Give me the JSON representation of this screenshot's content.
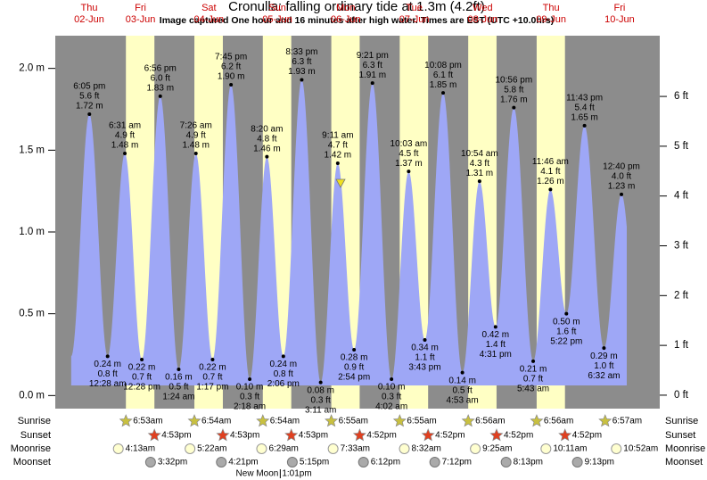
{
  "chart_data": {
    "type": "area",
    "title": "Cronulla: falling  ordinary tide at 1.3m (4.2ft)",
    "subtitle": "Image captured One hour and 16 minutes after high water. Times are EST (UTC +10.0hrs)",
    "ylim": [
      -0.08,
      2.2
    ],
    "yticks": [
      {
        "value": 0,
        "label": "0.0 m"
      },
      {
        "value": 0.5,
        "label": "0.5 m"
      },
      {
        "value": 1,
        "label": "1.0 m"
      },
      {
        "value": 1.5,
        "label": "1.5 m"
      },
      {
        "value": 2,
        "label": "2.0 m"
      }
    ],
    "y2lim": [
      -0.27,
      7.22
    ],
    "y2ticks": [
      {
        "value": 0,
        "label": "0 ft"
      },
      {
        "value": 1,
        "label": "1 ft"
      },
      {
        "value": 2,
        "label": "2 ft"
      },
      {
        "value": 3,
        "label": "3 ft"
      },
      {
        "value": 4,
        "label": "4 ft"
      },
      {
        "value": 5,
        "label": "5 ft"
      },
      {
        "value": 6,
        "label": "6 ft"
      }
    ],
    "row_labels": [
      "Sunrise",
      "Sunset",
      "Moonrise",
      "Moonset"
    ],
    "current_height": 1.3,
    "colors": {
      "water": "#9ea7f6",
      "day": "#ffffc4",
      "night": "#8c8c8c",
      "weekday": "#cc0000"
    },
    "days": [
      {
        "weekday": "Thu",
        "date": "02-Jun",
        "tides": [
          {
            "time": "6:05 pm",
            "height": 1.72,
            "height_label": "1.72 m",
            "feet": "5.6 ft"
          }
        ]
      },
      {
        "weekday": "Fri",
        "date": "03-Jun",
        "sunrise": "6:53am",
        "sunset": "4:53pm",
        "moonrise": "4:13am",
        "moonset": "3:32pm",
        "tides": [
          {
            "time": "12:28 am",
            "height": 0.24,
            "height_label": "0.24 m",
            "feet": "0.8 ft"
          },
          {
            "time": "6:31 am",
            "height": 1.48,
            "height_label": "1.48 m",
            "feet": "4.9 ft"
          },
          {
            "time": "12:28 pm",
            "height": 0.22,
            "height_label": "0.22 m",
            "feet": "0.7 ft"
          },
          {
            "time": "6:56 pm",
            "height": 1.83,
            "height_label": "1.83 m",
            "feet": "6.0 ft"
          }
        ]
      },
      {
        "weekday": "Sat",
        "date": "04-Jun",
        "sunrise": "6:54am",
        "sunset": "4:53pm",
        "moonrise": "5:22am",
        "moonset": "4:21pm",
        "tides": [
          {
            "time": "1:24 am",
            "height": 0.16,
            "height_label": "0.16 m",
            "feet": "0.5 ft"
          },
          {
            "time": "7:26 am",
            "height": 1.48,
            "height_label": "1.48 m",
            "feet": "4.9 ft"
          },
          {
            "time": "1:17 pm",
            "height": 0.22,
            "height_label": "0.22 m",
            "feet": "0.7 ft"
          },
          {
            "time": "7:45 pm",
            "height": 1.9,
            "height_label": "1.90 m",
            "feet": "6.2 ft"
          }
        ]
      },
      {
        "weekday": "Sun",
        "date": "05-Jun",
        "sunrise": "6:54am",
        "sunset": "4:53pm",
        "moonrise": "6:29am",
        "moonset": "5:15pm",
        "moon_phase": "New Moon",
        "moon_phase_time": "1:01pm",
        "tides": [
          {
            "time": "2:18 am",
            "height": 0.1,
            "height_label": "0.10 m",
            "feet": "0.3 ft"
          },
          {
            "time": "8:20 am",
            "height": 1.46,
            "height_label": "1.46 m",
            "feet": "4.8 ft"
          },
          {
            "time": "2:06 pm",
            "height": 0.24,
            "height_label": "0.24 m",
            "feet": "0.8 ft"
          },
          {
            "time": "8:33 pm",
            "height": 1.93,
            "height_label": "1.93 m",
            "feet": "6.3 ft"
          }
        ]
      },
      {
        "weekday": "Mon",
        "date": "06-Jun",
        "sunrise": "6:55am",
        "sunset": "4:52pm",
        "moonrise": "7:33am",
        "moonset": "6:12pm",
        "tides": [
          {
            "time": "3:11 am",
            "height": 0.08,
            "height_label": "0.08 m",
            "feet": "0.3 ft"
          },
          {
            "time": "9:11 am",
            "height": 1.42,
            "height_label": "1.42 m",
            "feet": "4.7 ft"
          },
          {
            "time": "2:54 pm",
            "height": 0.28,
            "height_label": "0.28 m",
            "feet": "0.9 ft"
          },
          {
            "time": "9:21 pm",
            "height": 1.91,
            "height_label": "1.91 m",
            "feet": "6.3 ft"
          }
        ]
      },
      {
        "weekday": "Tue",
        "date": "07-Jun",
        "sunrise": "6:55am",
        "sunset": "4:52pm",
        "moonrise": "8:32am",
        "moonset": "7:12pm",
        "tides": [
          {
            "time": "4:02 am",
            "height": 0.1,
            "height_label": "0.10 m",
            "feet": "0.3 ft"
          },
          {
            "time": "10:03 am",
            "height": 1.37,
            "height_label": "1.37 m",
            "feet": "4.5 ft"
          },
          {
            "time": "3:43 pm",
            "height": 0.34,
            "height_label": "0.34 m",
            "feet": "1.1 ft"
          },
          {
            "time": "10:08 pm",
            "height": 1.85,
            "height_label": "1.85 m",
            "feet": "6.1 ft"
          }
        ]
      },
      {
        "weekday": "Wed",
        "date": "08-Jun",
        "sunrise": "6:56am",
        "sunset": "4:52pm",
        "moonrise": "9:25am",
        "moonset": "8:13pm",
        "tides": [
          {
            "time": "4:53 am",
            "height": 0.14,
            "height_label": "0.14 m",
            "feet": "0.5 ft"
          },
          {
            "time": "10:54 am",
            "height": 1.31,
            "height_label": "1.31 m",
            "feet": "4.3 ft"
          },
          {
            "time": "4:31 pm",
            "height": 0.42,
            "height_label": "0.42 m",
            "feet": "1.4 ft"
          },
          {
            "time": "10:56 pm",
            "height": 1.76,
            "height_label": "1.76 m",
            "feet": "5.8 ft"
          }
        ]
      },
      {
        "weekday": "Thu",
        "date": "09-Jun",
        "sunrise": "6:56am",
        "sunset": "4:52pm",
        "moonrise": "10:11am",
        "moonset": "9:13pm",
        "tides": [
          {
            "time": "5:43 am",
            "height": 0.21,
            "height_label": "0.21 m",
            "feet": "0.7 ft"
          },
          {
            "time": "11:46 am",
            "height": 1.26,
            "height_label": "1.26 m",
            "feet": "4.1 ft"
          },
          {
            "time": "5:22 pm",
            "height": 0.5,
            "height_label": "0.50 m",
            "feet": "1.6 ft"
          },
          {
            "time": "11:43 pm",
            "height": 1.65,
            "height_label": "1.65 m",
            "feet": "5.4 ft"
          }
        ]
      },
      {
        "weekday": "Fri",
        "date": "10-Jun",
        "sunrise": "6:57am",
        "moonrise": "10:52am",
        "tides": [
          {
            "time": "6:32 am",
            "height": 0.29,
            "height_label": "0.29 m",
            "feet": "1.0 ft"
          },
          {
            "time": "12:40 pm",
            "height": 1.23,
            "height_label": "1.23 m",
            "feet": "4.0 ft"
          }
        ]
      }
    ]
  }
}
